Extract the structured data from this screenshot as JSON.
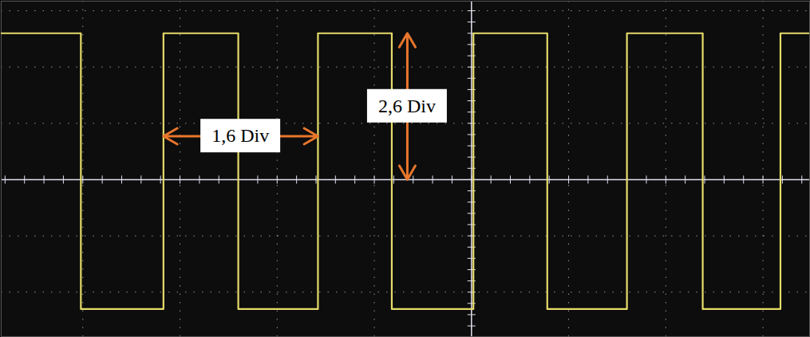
{
  "chart_data": {
    "type": "line",
    "x": [
      -4.84,
      -4.02,
      -4.02,
      -3.17,
      -3.17,
      -2.4,
      -2.4,
      -1.58,
      -1.58,
      -0.82,
      -0.82,
      0.02,
      0.02,
      0.78,
      0.78,
      1.6,
      1.6,
      2.38,
      2.38,
      3.18,
      3.18,
      3.48
    ],
    "values": [
      2.6,
      2.6,
      -2.3,
      -2.3,
      2.6,
      2.6,
      -2.3,
      -2.3,
      2.6,
      2.6,
      -2.3,
      -2.3,
      2.6,
      2.6,
      -2.3,
      -2.3,
      2.6,
      2.6,
      -2.3,
      -2.3,
      2.6,
      2.6
    ],
    "color": "#e6dc6a",
    "xlim": [
      -4.84,
      3.48
    ],
    "xticks": [
      -4,
      -3,
      -2,
      -1,
      0,
      1,
      2,
      3
    ],
    "ylim": [
      -2.79,
      3.17
    ],
    "yticks": [
      -2,
      -1,
      0,
      1,
      2,
      3
    ],
    "grid": true,
    "tick_labels": false,
    "annotations": [
      {
        "text": "1,6 Div",
        "x": [
          -3.17,
          -1.58
        ],
        "y": 0.77
      },
      {
        "text": "2,6 Div",
        "x": -0.66,
        "y": [
          0,
          2.6
        ]
      }
    ]
  }
}
